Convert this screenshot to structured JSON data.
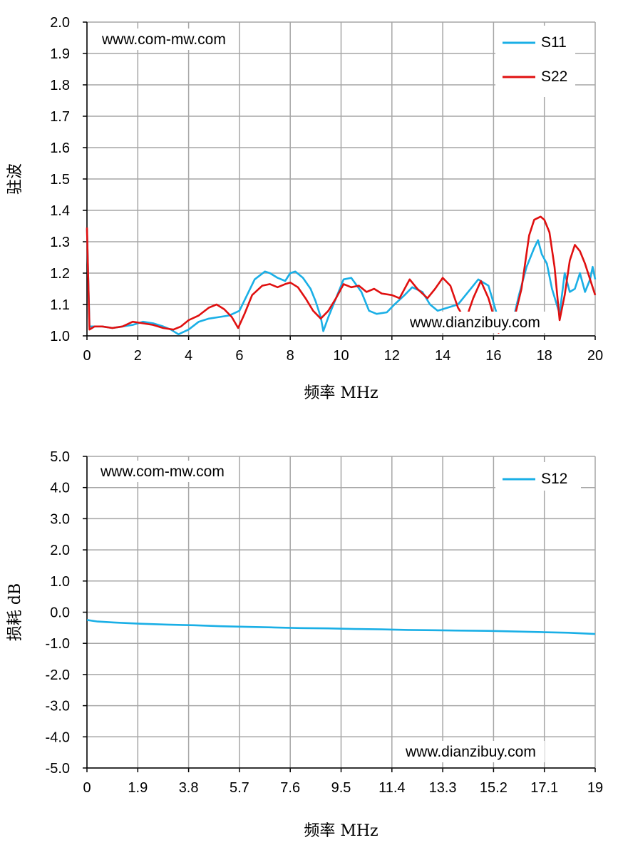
{
  "chart_data": [
    {
      "type": "line",
      "watermarks": [
        "www.com-mw.com",
        "www.dianzibuy.com"
      ],
      "xlabel": "频率 MHz",
      "ylabel": "驻波",
      "xlim": [
        0,
        20
      ],
      "ylim": [
        1.0,
        2.0
      ],
      "x_ticks": [
        "0",
        "2",
        "4",
        "6",
        "8",
        "10",
        "12",
        "14",
        "16",
        "18",
        "20"
      ],
      "y_ticks": [
        "2.0",
        "1.9",
        "1.8",
        "1.7",
        "1.6",
        "1.5",
        "1.4",
        "1.3",
        "1.2",
        "1.1",
        "1.0"
      ],
      "grid": true,
      "legend_position": "top-right",
      "series": [
        {
          "name": "S11",
          "color": "#1aafe6",
          "points": [
            [
              0.0,
              1.34
            ],
            [
              0.1,
              1.03
            ],
            [
              0.3,
              1.03
            ],
            [
              0.6,
              1.03
            ],
            [
              1.0,
              1.025
            ],
            [
              1.4,
              1.03
            ],
            [
              1.8,
              1.035
            ],
            [
              2.2,
              1.045
            ],
            [
              2.6,
              1.04
            ],
            [
              3.0,
              1.03
            ],
            [
              3.3,
              1.02
            ],
            [
              3.6,
              1.005
            ],
            [
              4.0,
              1.02
            ],
            [
              4.4,
              1.045
            ],
            [
              4.8,
              1.055
            ],
            [
              5.2,
              1.06
            ],
            [
              5.6,
              1.065
            ],
            [
              6.0,
              1.08
            ],
            [
              6.3,
              1.13
            ],
            [
              6.6,
              1.18
            ],
            [
              7.0,
              1.205
            ],
            [
              7.2,
              1.2
            ],
            [
              7.5,
              1.185
            ],
            [
              7.8,
              1.175
            ],
            [
              8.0,
              1.2
            ],
            [
              8.2,
              1.205
            ],
            [
              8.5,
              1.185
            ],
            [
              8.8,
              1.15
            ],
            [
              9.0,
              1.11
            ],
            [
              9.2,
              1.06
            ],
            [
              9.3,
              1.015
            ],
            [
              9.5,
              1.06
            ],
            [
              9.8,
              1.12
            ],
            [
              10.1,
              1.18
            ],
            [
              10.4,
              1.185
            ],
            [
              10.8,
              1.14
            ],
            [
              11.1,
              1.08
            ],
            [
              11.4,
              1.07
            ],
            [
              11.8,
              1.075
            ],
            [
              12.1,
              1.1
            ],
            [
              12.5,
              1.13
            ],
            [
              12.8,
              1.155
            ],
            [
              13.2,
              1.14
            ],
            [
              13.5,
              1.1
            ],
            [
              13.8,
              1.08
            ],
            [
              14.2,
              1.09
            ],
            [
              14.6,
              1.1
            ],
            [
              15.0,
              1.14
            ],
            [
              15.4,
              1.18
            ],
            [
              15.8,
              1.16
            ],
            [
              16.2,
              1.05
            ],
            [
              16.5,
              1.04
            ],
            [
              16.8,
              1.06
            ],
            [
              17.0,
              1.13
            ],
            [
              17.3,
              1.22
            ],
            [
              17.6,
              1.28
            ],
            [
              17.75,
              1.305
            ],
            [
              17.9,
              1.26
            ],
            [
              18.1,
              1.23
            ],
            [
              18.3,
              1.15
            ],
            [
              18.6,
              1.07
            ],
            [
              18.8,
              1.2
            ],
            [
              19.0,
              1.14
            ],
            [
              19.2,
              1.15
            ],
            [
              19.4,
              1.2
            ],
            [
              19.6,
              1.14
            ],
            [
              19.8,
              1.18
            ],
            [
              19.9,
              1.22
            ],
            [
              20.0,
              1.18
            ]
          ]
        },
        {
          "name": "S22",
          "color": "#e01010",
          "points": [
            [
              0.0,
              1.345
            ],
            [
              0.1,
              1.02
            ],
            [
              0.3,
              1.03
            ],
            [
              0.6,
              1.03
            ],
            [
              1.0,
              1.025
            ],
            [
              1.4,
              1.03
            ],
            [
              1.8,
              1.045
            ],
            [
              2.2,
              1.04
            ],
            [
              2.6,
              1.035
            ],
            [
              3.0,
              1.025
            ],
            [
              3.4,
              1.02
            ],
            [
              3.7,
              1.03
            ],
            [
              4.0,
              1.05
            ],
            [
              4.4,
              1.065
            ],
            [
              4.8,
              1.09
            ],
            [
              5.1,
              1.1
            ],
            [
              5.4,
              1.085
            ],
            [
              5.7,
              1.06
            ],
            [
              5.95,
              1.025
            ],
            [
              6.2,
              1.07
            ],
            [
              6.5,
              1.13
            ],
            [
              6.9,
              1.16
            ],
            [
              7.2,
              1.165
            ],
            [
              7.5,
              1.155
            ],
            [
              7.8,
              1.165
            ],
            [
              8.0,
              1.17
            ],
            [
              8.3,
              1.155
            ],
            [
              8.6,
              1.12
            ],
            [
              8.9,
              1.08
            ],
            [
              9.2,
              1.055
            ],
            [
              9.5,
              1.08
            ],
            [
              9.8,
              1.12
            ],
            [
              10.1,
              1.165
            ],
            [
              10.4,
              1.155
            ],
            [
              10.7,
              1.16
            ],
            [
              11.0,
              1.14
            ],
            [
              11.3,
              1.15
            ],
            [
              11.6,
              1.135
            ],
            [
              12.0,
              1.13
            ],
            [
              12.3,
              1.12
            ],
            [
              12.7,
              1.18
            ],
            [
              13.0,
              1.15
            ],
            [
              13.4,
              1.12
            ],
            [
              13.7,
              1.15
            ],
            [
              14.0,
              1.185
            ],
            [
              14.3,
              1.16
            ],
            [
              14.6,
              1.09
            ],
            [
              14.9,
              1.05
            ],
            [
              15.2,
              1.12
            ],
            [
              15.5,
              1.175
            ],
            [
              15.8,
              1.12
            ],
            [
              16.2,
              1.01
            ],
            [
              16.5,
              1.04
            ],
            [
              16.8,
              1.05
            ],
            [
              17.1,
              1.15
            ],
            [
              17.4,
              1.32
            ],
            [
              17.6,
              1.37
            ],
            [
              17.85,
              1.38
            ],
            [
              18.0,
              1.37
            ],
            [
              18.2,
              1.33
            ],
            [
              18.4,
              1.22
            ],
            [
              18.6,
              1.05
            ],
            [
              18.8,
              1.13
            ],
            [
              19.0,
              1.24
            ],
            [
              19.2,
              1.29
            ],
            [
              19.4,
              1.27
            ],
            [
              19.6,
              1.23
            ],
            [
              19.8,
              1.18
            ],
            [
              20.0,
              1.13
            ]
          ]
        }
      ]
    },
    {
      "type": "line",
      "watermarks": [
        "www.com-mw.com",
        "www.dianzibuy.com"
      ],
      "xlabel": "频率 MHz",
      "ylabel": "损耗 dB",
      "xlim": [
        0,
        19
      ],
      "ylim": [
        -5.0,
        5.0
      ],
      "x_ticks": [
        "0",
        "1.9",
        "3.8",
        "5.7",
        "7.6",
        "9.5",
        "11.4",
        "13.3",
        "15.2",
        "17.1",
        "19"
      ],
      "y_ticks": [
        "5.0",
        "4.0",
        "3.0",
        "2.0",
        "1.0",
        "0.0",
        "-1.0",
        "-2.0",
        "-3.0",
        "-4.0",
        "-5.0"
      ],
      "grid": true,
      "legend_position": "top-right",
      "series": [
        {
          "name": "S12",
          "color": "#1aafe6",
          "points": [
            [
              0.0,
              -0.25
            ],
            [
              0.4,
              -0.3
            ],
            [
              1.0,
              -0.33
            ],
            [
              2.0,
              -0.37
            ],
            [
              3.0,
              -0.4
            ],
            [
              4.0,
              -0.42
            ],
            [
              5.0,
              -0.45
            ],
            [
              6.0,
              -0.47
            ],
            [
              7.0,
              -0.49
            ],
            [
              8.0,
              -0.51
            ],
            [
              9.0,
              -0.52
            ],
            [
              10.0,
              -0.54
            ],
            [
              11.0,
              -0.55
            ],
            [
              12.0,
              -0.57
            ],
            [
              13.0,
              -0.58
            ],
            [
              14.0,
              -0.59
            ],
            [
              15.0,
              -0.6
            ],
            [
              16.0,
              -0.62
            ],
            [
              17.0,
              -0.64
            ],
            [
              18.0,
              -0.66
            ],
            [
              19.0,
              -0.7
            ]
          ]
        }
      ]
    }
  ]
}
